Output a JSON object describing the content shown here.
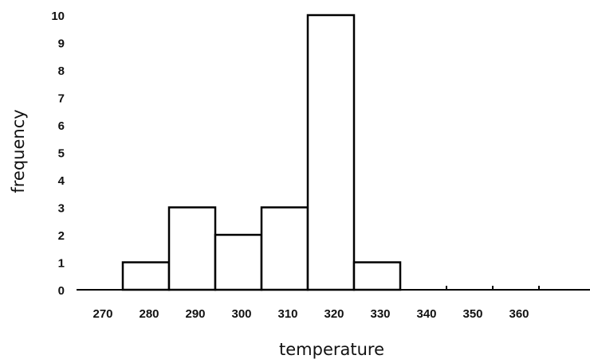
{
  "chart_data": {
    "type": "bar",
    "xlabel": "temperature",
    "ylabel": "frequency",
    "bin_width": 10,
    "bins": [
      {
        "center": 270,
        "value": 0
      },
      {
        "center": 280,
        "value": 1
      },
      {
        "center": 290,
        "value": 3
      },
      {
        "center": 300,
        "value": 2
      },
      {
        "center": 310,
        "value": 3
      },
      {
        "center": 320,
        "value": 10
      },
      {
        "center": 330,
        "value": 1
      },
      {
        "center": 340,
        "value": 0
      },
      {
        "center": 350,
        "value": 0
      },
      {
        "center": 360,
        "value": 0
      }
    ],
    "x_ticks": [
      "270",
      "280",
      "290",
      "300",
      "310",
      "320",
      "330",
      "340",
      "350",
      "360"
    ],
    "y_ticks": [
      "0",
      "1",
      "2",
      "3",
      "4",
      "5",
      "6",
      "7",
      "8",
      "9",
      "10"
    ],
    "ylim": [
      0,
      10
    ],
    "xlim": [
      265,
      375
    ],
    "grid": false,
    "colors": {
      "bar_fill": "#ffffff",
      "bar_stroke": "#000000",
      "axis": "#000000"
    }
  }
}
